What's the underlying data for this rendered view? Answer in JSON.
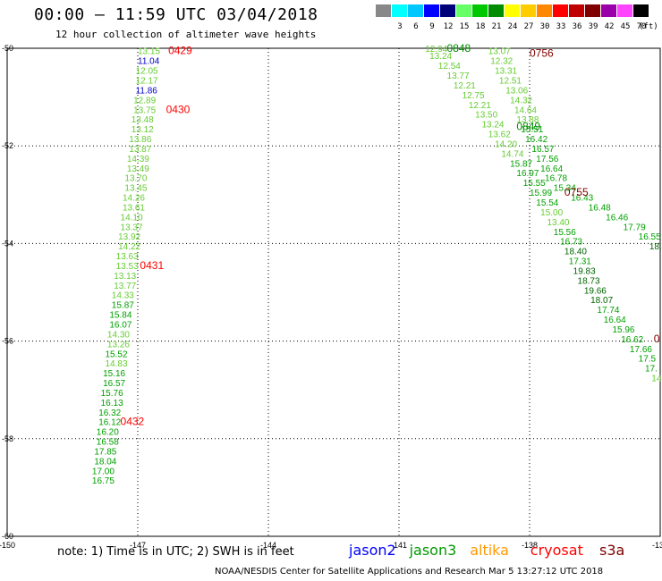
{
  "header": {
    "title": "00:00 – 11:59 UTC 03/04/2018",
    "subtitle": "12 hour collection of altimeter wave heights"
  },
  "legend": {
    "unit": "(ft)",
    "swatches": [
      {
        "label": "",
        "color": "#888888"
      },
      {
        "label": "3",
        "color": "#00ffff"
      },
      {
        "label": "6",
        "color": "#00c8ff"
      },
      {
        "label": "9",
        "color": "#0000ff"
      },
      {
        "label": "12",
        "color": "#00007a"
      },
      {
        "label": "15",
        "color": "#66ff66"
      },
      {
        "label": "18",
        "color": "#00c800"
      },
      {
        "label": "21",
        "color": "#008c00"
      },
      {
        "label": "24",
        "color": "#ffff00"
      },
      {
        "label": "27",
        "color": "#ffcc00"
      },
      {
        "label": "30",
        "color": "#ff8800"
      },
      {
        "label": "33",
        "color": "#ff0000"
      },
      {
        "label": "36",
        "color": "#c00000"
      },
      {
        "label": "39",
        "color": "#800000"
      },
      {
        "label": "42",
        "color": "#9900aa"
      },
      {
        "label": "45",
        "color": "#ff44ff"
      },
      {
        "label": "70",
        "color": "#000000"
      }
    ]
  },
  "axes": {
    "lon_ticks": [
      "-150",
      "-147",
      "-144",
      "-141",
      "-138",
      "-135"
    ],
    "lat_ticks": [
      "-50",
      "-52",
      "-54",
      "-56",
      "-58",
      "-60"
    ]
  },
  "tracks": [
    {
      "color": "#008c00",
      "points": [
        {
          "lon": -147.0,
          "lat": -50.05,
          "v": "13.15",
          "c": "#66cc33"
        },
        {
          "lon": -147.0,
          "lat": -50.25,
          "v": "11.04",
          "c": "#0000cc"
        },
        {
          "lon": -147.05,
          "lat": -50.45,
          "v": "12.05",
          "c": "#66cc33"
        },
        {
          "lon": -147.05,
          "lat": -50.65,
          "v": "12.17",
          "c": "#66cc33"
        },
        {
          "lon": -147.05,
          "lat": -50.85,
          "v": "11.86",
          "c": "#0000cc"
        },
        {
          "lon": -147.1,
          "lat": -51.05,
          "v": "12.89",
          "c": "#66cc33"
        },
        {
          "lon": -147.1,
          "lat": -51.25,
          "v": "13.75",
          "c": "#66cc33"
        },
        {
          "lon": -147.15,
          "lat": -51.45,
          "v": "13.48",
          "c": "#66cc33"
        },
        {
          "lon": -147.15,
          "lat": -51.65,
          "v": "13.12",
          "c": "#66cc33"
        },
        {
          "lon": -147.2,
          "lat": -51.85,
          "v": "13.86",
          "c": "#66cc33"
        },
        {
          "lon": -147.2,
          "lat": -52.05,
          "v": "13.87",
          "c": "#66cc33"
        },
        {
          "lon": -147.25,
          "lat": -52.25,
          "v": "14.39",
          "c": "#66cc33"
        },
        {
          "lon": -147.25,
          "lat": -52.45,
          "v": "13.49",
          "c": "#66cc33"
        },
        {
          "lon": -147.3,
          "lat": -52.65,
          "v": "13.70",
          "c": "#66cc33"
        },
        {
          "lon": -147.3,
          "lat": -52.85,
          "v": "13.45",
          "c": "#66cc33"
        },
        {
          "lon": -147.35,
          "lat": -53.05,
          "v": "14.26",
          "c": "#66cc33"
        },
        {
          "lon": -147.35,
          "lat": -53.25,
          "v": "13.61",
          "c": "#66cc33"
        },
        {
          "lon": -147.4,
          "lat": -53.45,
          "v": "14.10",
          "c": "#66cc33"
        },
        {
          "lon": -147.4,
          "lat": -53.65,
          "v": "13.37",
          "c": "#66cc33"
        },
        {
          "lon": -147.45,
          "lat": -53.85,
          "v": "13.92",
          "c": "#66cc33"
        },
        {
          "lon": -147.45,
          "lat": -54.05,
          "v": "14.22",
          "c": "#66cc33"
        },
        {
          "lon": -147.5,
          "lat": -54.25,
          "v": "13.63",
          "c": "#66cc33"
        },
        {
          "lon": -147.5,
          "lat": -54.45,
          "v": "13.53",
          "c": "#66cc33"
        },
        {
          "lon": -147.55,
          "lat": -54.65,
          "v": "13.13",
          "c": "#66cc33"
        },
        {
          "lon": -147.55,
          "lat": -54.85,
          "v": "13.77",
          "c": "#66cc33"
        },
        {
          "lon": -147.6,
          "lat": -55.05,
          "v": "14.33",
          "c": "#66cc33"
        },
        {
          "lon": -147.6,
          "lat": -55.25,
          "v": "15.87",
          "c": "#00a000"
        },
        {
          "lon": -147.65,
          "lat": -55.45,
          "v": "15.84",
          "c": "#00a000"
        },
        {
          "lon": -147.65,
          "lat": -55.65,
          "v": "16.07",
          "c": "#00a000"
        },
        {
          "lon": -147.7,
          "lat": -55.85,
          "v": "14.30",
          "c": "#66cc33"
        },
        {
          "lon": -147.7,
          "lat": -56.05,
          "v": "13.26",
          "c": "#66cc33"
        },
        {
          "lon": -147.75,
          "lat": -56.25,
          "v": "15.52",
          "c": "#00a000"
        },
        {
          "lon": -147.75,
          "lat": -56.45,
          "v": "14.83",
          "c": "#66cc33"
        },
        {
          "lon": -147.8,
          "lat": -56.65,
          "v": "15.16",
          "c": "#00a000"
        },
        {
          "lon": -147.8,
          "lat": -56.85,
          "v": "16.57",
          "c": "#00a000"
        },
        {
          "lon": -147.85,
          "lat": -57.05,
          "v": "15.76",
          "c": "#00a000"
        },
        {
          "lon": -147.85,
          "lat": -57.25,
          "v": "16.13",
          "c": "#00a000"
        },
        {
          "lon": -147.9,
          "lat": -57.45,
          "v": "16.32",
          "c": "#00a000"
        },
        {
          "lon": -147.9,
          "lat": -57.65,
          "v": "16.12",
          "c": "#00a000"
        },
        {
          "lon": -147.95,
          "lat": -57.85,
          "v": "16.20",
          "c": "#00a000"
        },
        {
          "lon": -147.95,
          "lat": -58.05,
          "v": "16.58",
          "c": "#00a000"
        },
        {
          "lon": -148.0,
          "lat": -58.25,
          "v": "17.85",
          "c": "#00a000"
        },
        {
          "lon": -148.0,
          "lat": -58.45,
          "v": "18.04",
          "c": "#00a000"
        },
        {
          "lon": -148.05,
          "lat": -58.65,
          "v": "17.00",
          "c": "#00a000"
        },
        {
          "lon": -148.05,
          "lat": -58.85,
          "v": "16.75",
          "c": "#00a000"
        }
      ]
    },
    {
      "color": "#008c00",
      "points": [
        {
          "lon": -140.4,
          "lat": -50.0,
          "v": "12.94",
          "c": "#66cc33"
        },
        {
          "lon": -140.3,
          "lat": -50.15,
          "v": "13.24",
          "c": "#66cc33"
        },
        {
          "lon": -140.1,
          "lat": -50.35,
          "v": "12.54",
          "c": "#66cc33"
        },
        {
          "lon": -139.9,
          "lat": -50.55,
          "v": "13.77",
          "c": "#66cc33"
        },
        {
          "lon": -139.75,
          "lat": -50.75,
          "v": "12.21",
          "c": "#66cc33"
        },
        {
          "lon": -139.55,
          "lat": -50.95,
          "v": "12.75",
          "c": "#66cc33"
        },
        {
          "lon": -139.4,
          "lat": -51.15,
          "v": "12.21",
          "c": "#66cc33"
        },
        {
          "lon": -139.25,
          "lat": -51.35,
          "v": "13.50",
          "c": "#66cc33"
        },
        {
          "lon": -139.1,
          "lat": -51.55,
          "v": "13.24",
          "c": "#66cc33"
        },
        {
          "lon": -138.95,
          "lat": -51.75,
          "v": "13.62",
          "c": "#66cc33"
        },
        {
          "lon": -138.8,
          "lat": -51.95,
          "v": "14.20",
          "c": "#66cc33"
        },
        {
          "lon": -138.65,
          "lat": -52.15,
          "v": "14.74",
          "c": "#66cc33"
        },
        {
          "lon": -138.45,
          "lat": -52.35,
          "v": "15.87",
          "c": "#00a000"
        },
        {
          "lon": -138.3,
          "lat": -52.55,
          "v": "16.97",
          "c": "#00a000"
        },
        {
          "lon": -138.15,
          "lat": -52.75,
          "v": "15.55",
          "c": "#00a000"
        },
        {
          "lon": -138.0,
          "lat": -52.95,
          "v": "15.99",
          "c": "#00a000"
        },
        {
          "lon": -137.85,
          "lat": -53.15,
          "v": "15.54",
          "c": "#00a000"
        },
        {
          "lon": -137.75,
          "lat": -53.35,
          "v": "15.00",
          "c": "#66cc33"
        },
        {
          "lon": -137.6,
          "lat": -53.55,
          "v": "13.40",
          "c": "#66cc33"
        },
        {
          "lon": -137.45,
          "lat": -53.75,
          "v": "15.56",
          "c": "#00a000"
        },
        {
          "lon": -137.3,
          "lat": -53.95,
          "v": "16.73",
          "c": "#00a000"
        },
        {
          "lon": -137.2,
          "lat": -54.15,
          "v": "18.40",
          "c": "#006400"
        },
        {
          "lon": -137.1,
          "lat": -54.35,
          "v": "17.31",
          "c": "#00a000"
        },
        {
          "lon": -137.0,
          "lat": -54.55,
          "v": "19.83",
          "c": "#006400"
        },
        {
          "lon": -136.9,
          "lat": -54.75,
          "v": "18.73",
          "c": "#006400"
        },
        {
          "lon": -136.75,
          "lat": -54.95,
          "v": "19.66",
          "c": "#006400"
        },
        {
          "lon": -136.6,
          "lat": -55.15,
          "v": "18.07",
          "c": "#006400"
        },
        {
          "lon": -136.45,
          "lat": -55.35,
          "v": "17.74",
          "c": "#00a000"
        },
        {
          "lon": -136.3,
          "lat": -55.55,
          "v": "16.64",
          "c": "#00a000"
        },
        {
          "lon": -136.1,
          "lat": -55.75,
          "v": "15.96",
          "c": "#00a000"
        },
        {
          "lon": -135.9,
          "lat": -55.95,
          "v": "16.62",
          "c": "#00a000"
        },
        {
          "lon": -135.7,
          "lat": -56.15,
          "v": "17.66",
          "c": "#00a000"
        },
        {
          "lon": -135.5,
          "lat": -56.35,
          "v": "17.5",
          "c": "#00a000"
        },
        {
          "lon": -135.35,
          "lat": -56.55,
          "v": "17.",
          "c": "#00a000"
        },
        {
          "lon": -135.2,
          "lat": -56.75,
          "v": "14",
          "c": "#66cc33"
        }
      ]
    },
    {
      "color": "#008c00",
      "points": [
        {
          "lon": -138.95,
          "lat": -50.05,
          "v": "13.07",
          "c": "#66cc33"
        },
        {
          "lon": -138.9,
          "lat": -50.25,
          "v": "12.32",
          "c": "#66cc33"
        },
        {
          "lon": -138.8,
          "lat": -50.45,
          "v": "13.31",
          "c": "#66cc33"
        },
        {
          "lon": -138.7,
          "lat": -50.65,
          "v": "12.51",
          "c": "#66cc33"
        },
        {
          "lon": -138.55,
          "lat": -50.85,
          "v": "13.06",
          "c": "#66cc33"
        },
        {
          "lon": -138.45,
          "lat": -51.05,
          "v": "14.32",
          "c": "#66cc33"
        },
        {
          "lon": -138.35,
          "lat": -51.25,
          "v": "14.64",
          "c": "#66cc33"
        },
        {
          "lon": -138.3,
          "lat": -51.45,
          "v": "13.88",
          "c": "#66cc33"
        },
        {
          "lon": -138.2,
          "lat": -51.65,
          "v": "15.51",
          "c": "#00a000"
        },
        {
          "lon": -138.1,
          "lat": -51.85,
          "v": "16.42",
          "c": "#00a000"
        },
        {
          "lon": -137.95,
          "lat": -52.05,
          "v": "16.57",
          "c": "#00a000"
        },
        {
          "lon": -137.85,
          "lat": -52.25,
          "v": "17.56",
          "c": "#00a000"
        },
        {
          "lon": -137.75,
          "lat": -52.45,
          "v": "16.64",
          "c": "#00a000"
        },
        {
          "lon": -137.65,
          "lat": -52.65,
          "v": "16.78",
          "c": "#00a000"
        },
        {
          "lon": -137.45,
          "lat": -52.85,
          "v": "15.34",
          "c": "#00a000"
        },
        {
          "lon": -137.05,
          "lat": -53.05,
          "v": "16.43",
          "c": "#00a000"
        },
        {
          "lon": -136.65,
          "lat": -53.25,
          "v": "16.48",
          "c": "#00a000"
        },
        {
          "lon": -136.25,
          "lat": -53.45,
          "v": "16.46",
          "c": "#00a000"
        },
        {
          "lon": -135.85,
          "lat": -53.65,
          "v": "17.79",
          "c": "#00a000"
        },
        {
          "lon": -135.5,
          "lat": -53.85,
          "v": "16.55",
          "c": "#00a000"
        },
        {
          "lon": -135.25,
          "lat": -54.05,
          "v": "18.",
          "c": "#006400"
        }
      ]
    }
  ],
  "time_labels": [
    {
      "lon": -146.3,
      "lat": -50.05,
      "text": "0429",
      "color": "#ff0000"
    },
    {
      "lon": -146.35,
      "lat": -51.25,
      "text": "0430",
      "color": "#ff0000"
    },
    {
      "lon": -146.95,
      "lat": -54.45,
      "text": "0431",
      "color": "#ff0000"
    },
    {
      "lon": -147.4,
      "lat": -57.65,
      "text": "0432",
      "color": "#ff0000"
    },
    {
      "lon": -139.9,
      "lat": -50.0,
      "text": "0848",
      "color": "#008c00"
    },
    {
      "lon": -138.3,
      "lat": -51.6,
      "text": "0849",
      "color": "#008c00"
    },
    {
      "lon": -138.0,
      "lat": -50.1,
      "text": "0756",
      "color": "#800000"
    },
    {
      "lon": -137.2,
      "lat": -52.95,
      "text": "0755",
      "color": "#800000"
    },
    {
      "lon": -135.15,
      "lat": -55.95,
      "text": "0",
      "color": "#800000"
    }
  ],
  "footer": {
    "note": "note: 1) Time is in UTC; 2) SWH is in feet",
    "satellites": [
      {
        "name": "jason2",
        "color": "#0000ff"
      },
      {
        "name": "jason3",
        "color": "#009900"
      },
      {
        "name": "altika",
        "color": "#ff9900"
      },
      {
        "name": "cryosat",
        "color": "#ff0000"
      },
      {
        "name": "s3a",
        "color": "#800000"
      }
    ],
    "credit": "NOAA/NESDIS Center for Satellite Applications and Research    Mar  5 13:27:12 UTC 2018"
  }
}
